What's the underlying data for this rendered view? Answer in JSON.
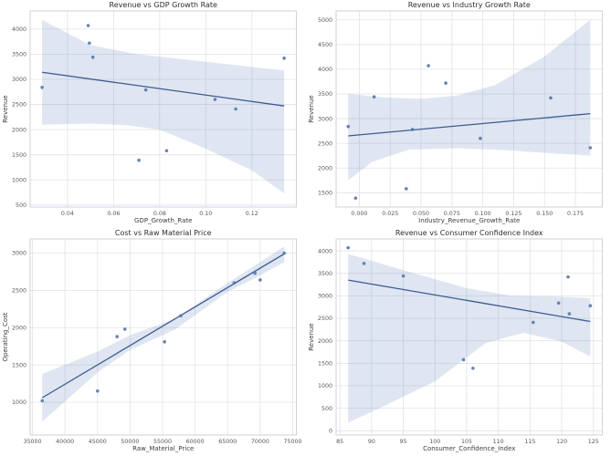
{
  "figure": {
    "background": "#ffffff"
  },
  "style": {
    "point_color": "#5577aa",
    "point_opacity": 0.9,
    "line_color": "#3b5b92",
    "band_color": "#4c72b0",
    "band_opacity": 0.18,
    "grid_color": "#dfe2e8",
    "spine_color": "#c9cdd4",
    "title_color": "#2e2e2e",
    "tick_color": "#555555",
    "label_color": "#3d3d3d"
  },
  "chart_data": [
    {
      "type": "scatter",
      "title": "Revenue vs GDP Growth Rate",
      "xlabel": "GDP_Growth_Rate",
      "ylabel": "Revenue",
      "xlim": [
        0.0238,
        0.1393
      ],
      "ylim": [
        460,
        4360
      ],
      "xticks": [
        0.04,
        0.06,
        0.08,
        0.1,
        0.12
      ],
      "xtick_labels": [
        "0.04",
        "0.06",
        "0.08",
        "0.10",
        "0.12"
      ],
      "yticks": [
        500,
        1000,
        1500,
        2000,
        2500,
        3000,
        3500,
        4000
      ],
      "ytick_labels": [
        "500",
        "1000",
        "1500",
        "2000",
        "2500",
        "3000",
        "3500",
        "4000"
      ],
      "points": [
        [
          0.029,
          2840
        ],
        [
          0.049,
          4070
        ],
        [
          0.0495,
          3720
        ],
        [
          0.051,
          3440
        ],
        [
          0.071,
          1390
        ],
        [
          0.074,
          2790
        ],
        [
          0.083,
          1580
        ],
        [
          0.104,
          2600
        ],
        [
          0.113,
          2410
        ],
        [
          0.134,
          3420
        ]
      ],
      "regression_line": [
        [
          0.029,
          3140
        ],
        [
          0.134,
          2470
        ]
      ],
      "ci_band": {
        "upper": [
          [
            0.029,
            4180
          ],
          [
            0.05,
            3680
          ],
          [
            0.07,
            3500
          ],
          [
            0.09,
            3400
          ],
          [
            0.11,
            3300
          ],
          [
            0.123,
            3230
          ],
          [
            0.134,
            3180
          ]
        ],
        "lower": [
          [
            0.029,
            2100
          ],
          [
            0.05,
            2120
          ],
          [
            0.065,
            2090
          ],
          [
            0.08,
            2000
          ],
          [
            0.1,
            1620
          ],
          [
            0.12,
            1190
          ],
          [
            0.134,
            730
          ]
        ]
      },
      "grid": true,
      "legend": "none"
    },
    {
      "type": "scatter",
      "title": "Revenue vs Industry Growth Rate",
      "xlabel": "Industry_Revenue_Growth_Rate",
      "ylabel": "Revenue",
      "xlim": [
        -0.0188,
        0.1968
      ],
      "ylim": [
        1210,
        5180
      ],
      "xticks": [
        0.0,
        0.025,
        0.05,
        0.075,
        0.1,
        0.125,
        0.15,
        0.175
      ],
      "xtick_labels": [
        "0.000",
        "0.025",
        "0.050",
        "0.075",
        "0.100",
        "0.125",
        "0.150",
        "0.175"
      ],
      "yticks": [
        1500,
        2000,
        2500,
        3000,
        3500,
        4000,
        4500,
        5000
      ],
      "ytick_labels": [
        "1500",
        "2000",
        "2500",
        "3000",
        "3500",
        "4000",
        "4500",
        "5000"
      ],
      "points": [
        [
          -0.009,
          2840
        ],
        [
          -0.003,
          1390
        ],
        [
          0.012,
          3440
        ],
        [
          0.038,
          1580
        ],
        [
          0.043,
          2780
        ],
        [
          0.056,
          4070
        ],
        [
          0.07,
          3720
        ],
        [
          0.098,
          2600
        ],
        [
          0.155,
          3420
        ],
        [
          0.187,
          2410
        ]
      ],
      "regression_line": [
        [
          -0.009,
          2650
        ],
        [
          0.187,
          3100
        ]
      ],
      "ci_band": {
        "upper": [
          [
            -0.009,
            3500
          ],
          [
            0.02,
            3430
          ],
          [
            0.05,
            3400
          ],
          [
            0.08,
            3470
          ],
          [
            0.11,
            3680
          ],
          [
            0.15,
            4260
          ],
          [
            0.187,
            5000
          ]
        ],
        "lower": [
          [
            -0.009,
            1750
          ],
          [
            0.01,
            2120
          ],
          [
            0.04,
            2370
          ],
          [
            0.08,
            2400
          ],
          [
            0.12,
            2360
          ],
          [
            0.155,
            2300
          ],
          [
            0.187,
            2250
          ]
        ]
      },
      "grid": true,
      "legend": "none"
    },
    {
      "type": "scatter",
      "title": "Cost vs Raw Material Price",
      "xlabel": "Raw_Material_Price",
      "ylabel": "Operating_Cost",
      "xlim": [
        34640,
        75560
      ],
      "ylim": [
        560,
        3190
      ],
      "xticks": [
        35000,
        40000,
        45000,
        50000,
        55000,
        60000,
        65000,
        70000,
        75000
      ],
      "xtick_labels": [
        "35000",
        "40000",
        "45000",
        "50000",
        "55000",
        "60000",
        "65000",
        "70000",
        "75000"
      ],
      "yticks": [
        1000,
        1500,
        2000,
        2500,
        3000
      ],
      "ytick_labels": [
        "1000",
        "1500",
        "2000",
        "2500",
        "3000"
      ],
      "points": [
        [
          36500,
          1020
        ],
        [
          45000,
          1150
        ],
        [
          48000,
          1880
        ],
        [
          49200,
          1980
        ],
        [
          55300,
          1810
        ],
        [
          57800,
          2160
        ],
        [
          66000,
          2600
        ],
        [
          69200,
          2730
        ],
        [
          70000,
          2640
        ],
        [
          73700,
          3000
        ]
      ],
      "regression_line": [
        [
          36500,
          1060
        ],
        [
          73700,
          2990
        ]
      ],
      "ci_band": {
        "upper": [
          [
            36500,
            1380
          ],
          [
            45000,
            1680
          ],
          [
            50000,
            1900
          ],
          [
            57000,
            2120
          ],
          [
            65000,
            2600
          ],
          [
            70000,
            2880
          ],
          [
            73700,
            3090
          ]
        ],
        "lower": [
          [
            36500,
            740
          ],
          [
            45000,
            1400
          ],
          [
            50000,
            1700
          ],
          [
            57000,
            1980
          ],
          [
            65000,
            2480
          ],
          [
            70000,
            2700
          ],
          [
            73700,
            2880
          ]
        ]
      },
      "grid": true,
      "legend": "none"
    },
    {
      "type": "scatter",
      "title": "Revenue vs Consumer Confidence Index",
      "xlabel": "Consumer_Confidence_Index",
      "ylabel": "Revenue",
      "xlim": [
        84.4,
        126.4
      ],
      "ylim": [
        -95,
        4265
      ],
      "xticks": [
        85,
        90,
        95,
        100,
        105,
        110,
        115,
        120,
        125
      ],
      "xtick_labels": [
        "85",
        "90",
        "95",
        "100",
        "105",
        "110",
        "115",
        "120",
        "125"
      ],
      "yticks": [
        0,
        500,
        1000,
        1500,
        2000,
        2500,
        3000,
        3500,
        4000
      ],
      "ytick_labels": [
        "0",
        "500",
        "1000",
        "1500",
        "2000",
        "2500",
        "3000",
        "3500",
        "4000"
      ],
      "points": [
        [
          86.3,
          4070
        ],
        [
          88.8,
          3720
        ],
        [
          95,
          3440
        ],
        [
          104.5,
          1580
        ],
        [
          106,
          1390
        ],
        [
          115.5,
          2410
        ],
        [
          119.5,
          2840
        ],
        [
          121,
          3420
        ],
        [
          121.2,
          2600
        ],
        [
          124.5,
          2780
        ]
      ],
      "regression_line": [
        [
          86.3,
          3350
        ],
        [
          124.5,
          2430
        ]
      ],
      "ci_band": {
        "upper": [
          [
            86.3,
            3930
          ],
          [
            95,
            3570
          ],
          [
            105,
            3170
          ],
          [
            112,
            3000
          ],
          [
            118,
            2990
          ],
          [
            124.5,
            2950
          ]
        ],
        "lower": [
          [
            86.3,
            180
          ],
          [
            93,
            620
          ],
          [
            100,
            1100
          ],
          [
            108,
            1950
          ],
          [
            114,
            2180
          ],
          [
            120,
            1980
          ],
          [
            124.5,
            1650
          ]
        ]
      },
      "grid": true,
      "legend": "none"
    }
  ]
}
